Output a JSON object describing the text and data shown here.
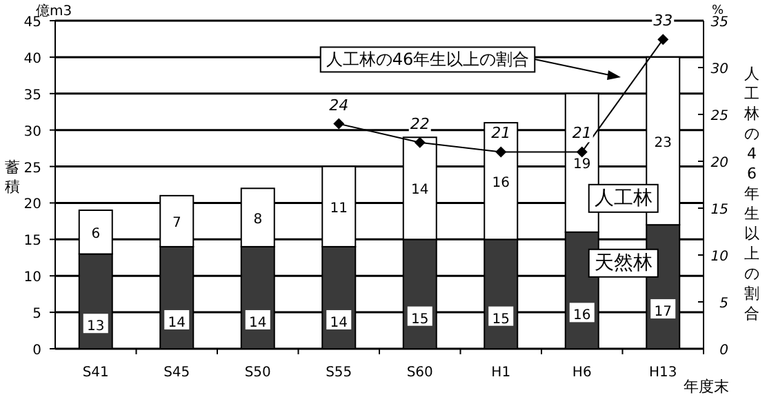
{
  "chart_data": {
    "type": "bar",
    "stacked": true,
    "xlabel": "年度末",
    "ylabel": "蓄積",
    "y2label": "人工林の46年生以上の割合",
    "annotations": [
      "億m3",
      "%"
    ],
    "categories": [
      "S41",
      "S45",
      "S50",
      "S55",
      "S60",
      "H1",
      "H6",
      "H13"
    ],
    "series": [
      {
        "name": "天然林",
        "color": "#3a3a3a",
        "values": [
          13,
          14,
          14,
          14,
          15,
          15,
          16,
          17
        ]
      },
      {
        "name": "人工林",
        "color": "#ffffff",
        "values": [
          6,
          7,
          8,
          11,
          14,
          16,
          19,
          23
        ]
      },
      {
        "name": "人工林の46年生以上の割合",
        "type": "line",
        "axis": "y2",
        "color": "#000000",
        "marker": "diamond",
        "values": [
          null,
          null,
          null,
          24,
          22,
          21,
          21,
          33
        ]
      }
    ],
    "ylim": [
      0,
      45
    ],
    "yticks": [
      0,
      5,
      10,
      15,
      20,
      25,
      30,
      35,
      40,
      45
    ],
    "y2lim": [
      0,
      35
    ],
    "y2ticks": [
      0,
      5,
      10,
      15,
      20,
      25,
      30,
      35
    ],
    "grid": "y",
    "legend": "top",
    "data_labels": true
  }
}
